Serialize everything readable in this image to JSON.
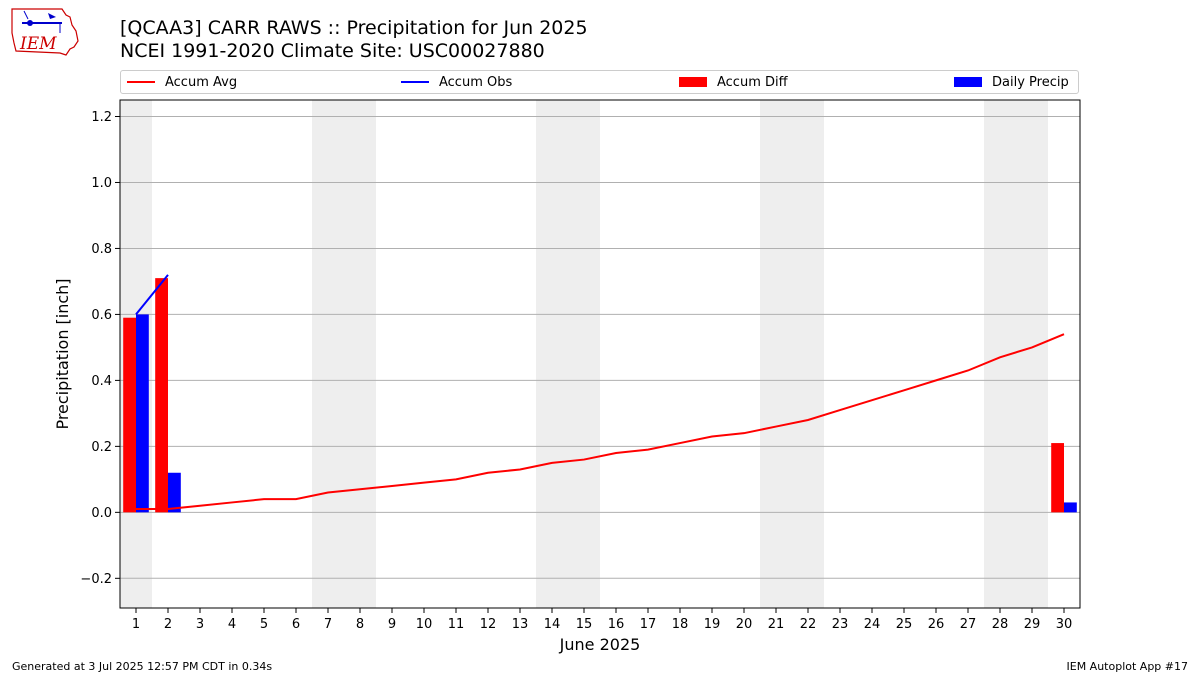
{
  "header": {
    "title_line1": "[QCAA3] CARR RAWS :: Precipitation for Jun 2025",
    "title_line2": "NCEI 1991-2020 Climate Site: USC00027880",
    "logo_text": "IEM"
  },
  "footer": {
    "left": "Generated at 3 Jul 2025 12:57 PM CDT in 0.34s",
    "right": "IEM Autoplot App #17"
  },
  "legend": [
    {
      "label": "Accum Avg",
      "kind": "line",
      "color": "#ff0000"
    },
    {
      "label": "Accum Obs",
      "kind": "line",
      "color": "#0000ff"
    },
    {
      "label": "Accum Diff",
      "kind": "rect",
      "color": "#ff0000"
    },
    {
      "label": "Daily Precip",
      "kind": "rect",
      "color": "#0000ff"
    }
  ],
  "chart_data": {
    "type": "bar",
    "xlabel": "June 2025",
    "ylabel": "Precipitation [inch]",
    "ylim": [
      -0.29,
      1.25
    ],
    "yticks": [
      -0.2,
      0.0,
      0.2,
      0.4,
      0.6,
      0.8,
      1.0,
      1.2
    ],
    "ytick_labels": [
      "−0.2",
      "0.0",
      "0.2",
      "0.4",
      "0.6",
      "0.8",
      "1.0",
      "1.2"
    ],
    "xlim": [
      0.5,
      30.5
    ],
    "days": [
      1,
      2,
      3,
      4,
      5,
      6,
      7,
      8,
      9,
      10,
      11,
      12,
      13,
      14,
      15,
      16,
      17,
      18,
      19,
      20,
      21,
      22,
      23,
      24,
      25,
      26,
      27,
      28,
      29,
      30
    ],
    "weekend_days": [
      1,
      7,
      8,
      14,
      15,
      21,
      22,
      28,
      29
    ],
    "grid": true,
    "series": [
      {
        "name": "Accum Avg",
        "kind": "line",
        "color": "#ff0000",
        "x": [
          1,
          2,
          3,
          4,
          5,
          6,
          7,
          8,
          9,
          10,
          11,
          12,
          13,
          14,
          15,
          16,
          17,
          18,
          19,
          20,
          21,
          22,
          23,
          24,
          25,
          26,
          27,
          28,
          29,
          30
        ],
        "values": [
          0.01,
          0.01,
          0.02,
          0.03,
          0.04,
          0.04,
          0.06,
          0.07,
          0.08,
          0.09,
          0.1,
          0.12,
          0.13,
          0.15,
          0.16,
          0.18,
          0.19,
          0.21,
          0.23,
          0.24,
          0.26,
          0.28,
          0.31,
          0.34,
          0.37,
          0.4,
          0.43,
          0.47,
          0.5,
          0.54
        ]
      },
      {
        "name": "Accum Obs",
        "kind": "line",
        "color": "#0000ff",
        "x": [
          1,
          2
        ],
        "values": [
          0.6,
          0.72
        ]
      },
      {
        "name": "Accum Diff",
        "kind": "bar",
        "color": "#ff0000",
        "x": [
          1,
          2,
          30
        ],
        "values": [
          0.59,
          0.71,
          0.21
        ]
      },
      {
        "name": "Daily Precip",
        "kind": "bar",
        "color": "#0000ff",
        "x": [
          1,
          2,
          30
        ],
        "values": [
          0.6,
          0.12,
          0.03
        ]
      }
    ]
  }
}
